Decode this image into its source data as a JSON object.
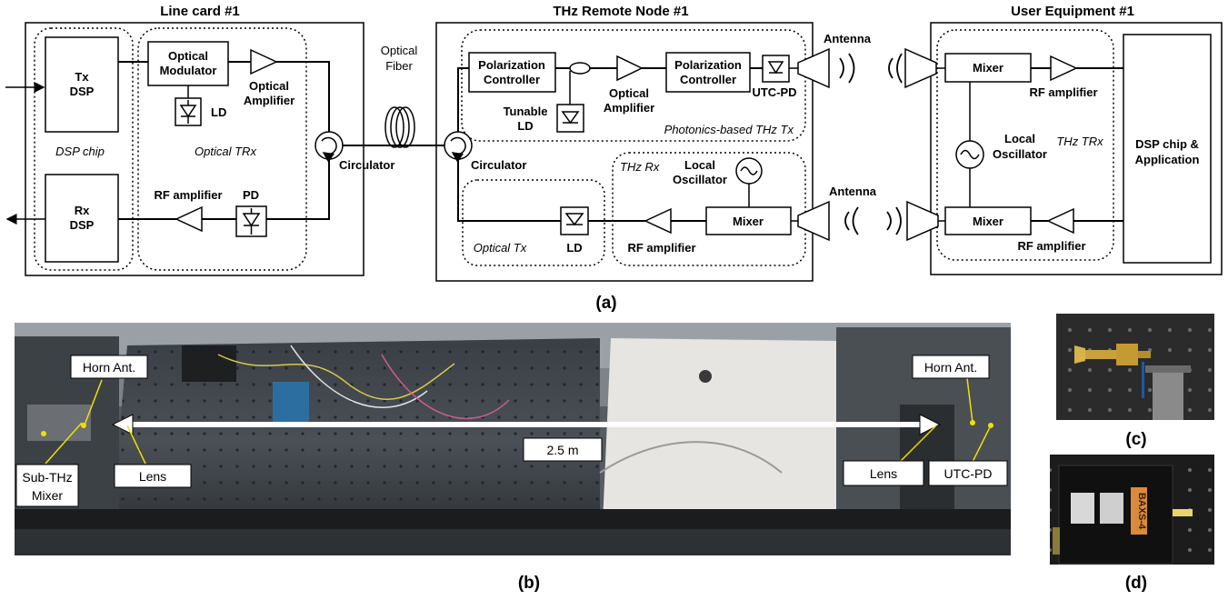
{
  "diagram": {
    "line_card": {
      "title": "Line card #1",
      "tx_dsp": [
        "Tx",
        "DSP"
      ],
      "rx_dsp": [
        "Rx",
        "DSP"
      ],
      "dsp_chip": "DSP chip",
      "optical_modulator": [
        "Optical",
        "Modulator"
      ],
      "ld": "LD",
      "optical_amplifier": [
        "Optical",
        "Amplifier"
      ],
      "optical_trx": "Optical TRx",
      "rf_amplifier": "RF amplifier",
      "pd": "PD",
      "circulator": "Circulator"
    },
    "optical_fiber": [
      "Optical",
      "Fiber"
    ],
    "remote_node": {
      "title": "THz Remote Node #1",
      "polarization_controller_1": [
        "Polarization",
        "Controller"
      ],
      "polarization_controller_2": [
        "Polarization",
        "Controller"
      ],
      "tunable_ld": [
        "Tunable",
        "LD"
      ],
      "optical_amplifier": [
        "Optical",
        "Amplifier"
      ],
      "utc_pd": "UTC-PD",
      "photonics_tx": "Photonics-based THz Tx",
      "circulator": "Circulator",
      "thz_rx": "THz Rx",
      "local_oscillator": [
        "Local",
        "Oscillator"
      ],
      "mixer": "Mixer",
      "optical_tx": "Optical Tx",
      "ld": "LD",
      "rf_amplifier": "RF amplifier",
      "antenna_top": "Antenna",
      "antenna_bottom": "Antenna"
    },
    "user_equipment": {
      "title": "User Equipment #1",
      "mixer_top": "Mixer",
      "mixer_bottom": "Mixer",
      "rf_amplifier_top": "RF amplifier",
      "rf_amplifier_bottom": "RF amplifier",
      "local_oscillator": [
        "Local",
        "Oscillator"
      ],
      "thz_trx": "THz TRx",
      "dsp_app": [
        "DSP chip &",
        "Application"
      ]
    },
    "caption_a": "(a)"
  },
  "photo": {
    "labels": {
      "horn_ant_left": "Horn Ant.",
      "sub_thz_mixer": [
        "Sub-THz",
        "Mixer"
      ],
      "lens_left": "Lens",
      "distance": "2.5 m",
      "horn_ant_right": "Horn Ant.",
      "lens_right": "Lens",
      "utc_pd": "UTC-PD"
    },
    "caption_b": "(b)",
    "caption_c": "(c)",
    "caption_d": "(d)",
    "device_label": "BAXS-4"
  }
}
